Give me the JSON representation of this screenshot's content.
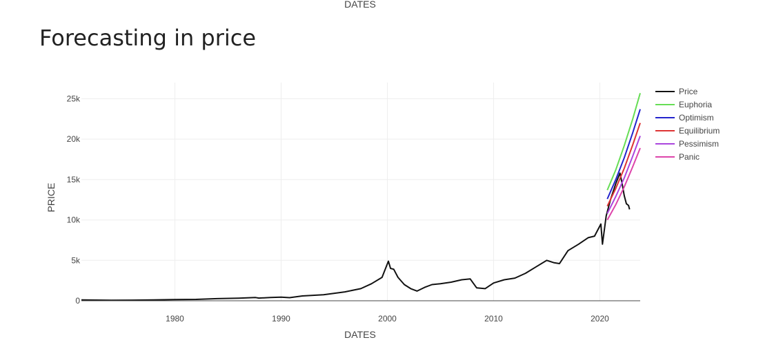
{
  "chart_data": {
    "type": "line",
    "title": "Forecasting in price",
    "top_label": "DATES",
    "xlabel": "DATES",
    "ylabel": "PRICE",
    "xlim": [
      1971.2,
      2023.8
    ],
    "ylim": [
      0,
      27000
    ],
    "x_ticks": [
      1980,
      1990,
      2000,
      2010,
      2020
    ],
    "x_tick_labels": [
      "1980",
      "1990",
      "2000",
      "2010",
      "2020"
    ],
    "y_ticks": [
      0,
      5000,
      10000,
      15000,
      20000,
      25000
    ],
    "y_tick_labels": [
      "0",
      "5k",
      "10k",
      "15k",
      "20k",
      "25k"
    ],
    "grid": true,
    "legend_position": "right",
    "series": [
      {
        "name": "Price",
        "color": "#111111",
        "x": [
          1971.2,
          1974,
          1976,
          1978,
          1980,
          1982,
          1984,
          1986,
          1987.6,
          1987.9,
          1989,
          1990,
          1990.8,
          1992,
          1994,
          1996,
          1997.5,
          1998.5,
          1999.5,
          2000.1,
          2000.3,
          2000.6,
          2001,
          2001.6,
          2002.2,
          2002.8,
          2003.5,
          2004.2,
          2005,
          2006,
          2007,
          2007.8,
          2008.4,
          2009.2,
          2010,
          2011,
          2012,
          2013,
          2014,
          2015,
          2015.7,
          2016.2,
          2017,
          2018,
          2018.9,
          2019.5,
          2020.1,
          2020.25,
          2020.6,
          2021,
          2021.5,
          2021.9,
          2022.1,
          2022.3,
          2022.5,
          2022.7,
          2022.8
        ],
        "y": [
          100,
          60,
          80,
          100,
          150,
          170,
          260,
          320,
          400,
          330,
          400,
          450,
          380,
          600,
          750,
          1100,
          1500,
          2100,
          2900,
          4900,
          4000,
          3900,
          2900,
          2000,
          1500,
          1200,
          1650,
          2000,
          2100,
          2300,
          2600,
          2700,
          1600,
          1500,
          2200,
          2600,
          2800,
          3400,
          4200,
          5000,
          4700,
          4600,
          6200,
          7000,
          7800,
          8000,
          9500,
          7000,
          10500,
          12500,
          14500,
          15800,
          14500,
          13000,
          12000,
          11800,
          11300
        ]
      },
      {
        "name": "Euphoria",
        "color": "#66dd55",
        "x": [
          2020.7,
          2021.5,
          2022.3,
          2023.1,
          2023.8
        ],
        "y": [
          13700,
          16200,
          19200,
          22500,
          25700
        ]
      },
      {
        "name": "Optimism",
        "color": "#2222cc",
        "x": [
          2020.7,
          2021.5,
          2022.3,
          2023.1,
          2023.8
        ],
        "y": [
          12600,
          15000,
          17700,
          20800,
          23700
        ]
      },
      {
        "name": "Equilibrium",
        "color": "#dd3333",
        "x": [
          2020.7,
          2021.5,
          2022.3,
          2023.1,
          2023.8
        ],
        "y": [
          11700,
          13900,
          16400,
          19300,
          22000
        ]
      },
      {
        "name": "Pessimism",
        "color": "#aa44dd",
        "x": [
          2020.7,
          2021.5,
          2022.3,
          2023.1,
          2023.8
        ],
        "y": [
          10800,
          12900,
          15200,
          17900,
          20400
        ]
      },
      {
        "name": "Panic",
        "color": "#dd44aa",
        "x": [
          2020.7,
          2021.5,
          2022.3,
          2023.1,
          2023.8
        ],
        "y": [
          10000,
          11900,
          14100,
          16600,
          18900
        ]
      }
    ]
  }
}
